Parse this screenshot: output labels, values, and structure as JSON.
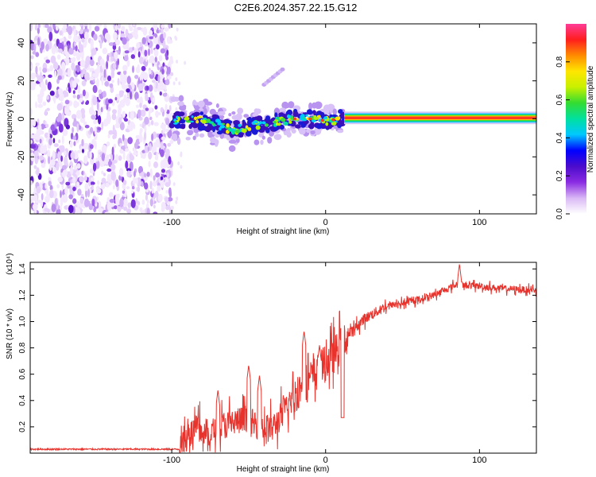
{
  "title": "C2E6.2024.357.22.15.G12",
  "chart_data": [
    {
      "type": "heatmap",
      "xlabel": "Height of straight line (km)",
      "ylabel": "Frequency (Hz)",
      "xlim": [
        -192,
        137
      ],
      "ylim": [
        -50,
        50
      ],
      "xticks": [
        -100,
        0,
        100
      ],
      "yticks": [
        -40,
        -20,
        0,
        20,
        40
      ],
      "colorbar": {
        "label": "Normalized spectral amplitude",
        "range": [
          0,
          1
        ],
        "ticks": [
          0.0,
          0.2,
          0.4,
          0.6,
          0.8
        ],
        "colors": [
          "#ffffff",
          "#d9b8f5",
          "#8a2be2",
          "#4b0ccc",
          "#0000ff",
          "#00c8ff",
          "#00e0a0",
          "#32dc32",
          "#c8f000",
          "#ffe600",
          "#ff8c00",
          "#ff1e1e",
          "#ff3c96"
        ]
      },
      "regions": {
        "noise_x": [
          -192,
          -100
        ],
        "blob_x": [
          -100,
          12
        ],
        "line_x": [
          12,
          137
        ],
        "line_frequency": 0.5,
        "line_width_hz": 3
      },
      "blob_centerline": [
        {
          "x": -98,
          "y": -1
        },
        {
          "x": -90,
          "y": 0
        },
        {
          "x": -80,
          "y": -1
        },
        {
          "x": -70,
          "y": -3
        },
        {
          "x": -60,
          "y": -6
        },
        {
          "x": -50,
          "y": -4
        },
        {
          "x": -40,
          "y": -3
        },
        {
          "x": -30,
          "y": -1
        },
        {
          "x": -20,
          "y": 0
        },
        {
          "x": -10,
          "y": 0
        },
        {
          "x": 0,
          "y": -1
        },
        {
          "x": 10,
          "y": 0
        }
      ],
      "spur": {
        "x": [
          -40,
          -28
        ],
        "y": [
          18,
          26
        ]
      }
    },
    {
      "type": "line",
      "xlabel": "Height of straight line (km)",
      "ylabel": "SNR (10 * v/v)",
      "exponent_label": "(x10⁴)",
      "color": "#e8322c",
      "xlim": [
        -192,
        137
      ],
      "ylim": [
        0,
        1.45
      ],
      "xticks": [
        -100,
        0,
        100
      ],
      "yticks": [
        0.2,
        0.4,
        0.6,
        0.8,
        1.0,
        1.2,
        1.4
      ],
      "ytick_labels": [
        "0.2",
        "0.4",
        "0.6",
        "0.8",
        "1.0",
        "1.2",
        "1.4"
      ],
      "trend": [
        {
          "x": -192,
          "y": 0.03
        },
        {
          "x": -95,
          "y": 0.03
        },
        {
          "x": -90,
          "y": 0.12
        },
        {
          "x": -85,
          "y": 0.18
        },
        {
          "x": -75,
          "y": 0.15
        },
        {
          "x": -65,
          "y": 0.22
        },
        {
          "x": -55,
          "y": 0.25
        },
        {
          "x": -45,
          "y": 0.22
        },
        {
          "x": -35,
          "y": 0.18
        },
        {
          "x": -25,
          "y": 0.35
        },
        {
          "x": -15,
          "y": 0.52
        },
        {
          "x": -5,
          "y": 0.62
        },
        {
          "x": 5,
          "y": 0.74
        },
        {
          "x": 15,
          "y": 0.9
        },
        {
          "x": 25,
          "y": 1.02
        },
        {
          "x": 40,
          "y": 1.12
        },
        {
          "x": 55,
          "y": 1.15
        },
        {
          "x": 70,
          "y": 1.2
        },
        {
          "x": 85,
          "y": 1.28
        },
        {
          "x": 100,
          "y": 1.27
        },
        {
          "x": 115,
          "y": 1.25
        },
        {
          "x": 137,
          "y": 1.24
        }
      ],
      "peaks": [
        {
          "x": -70,
          "y": 0.48
        },
        {
          "x": -50,
          "y": 0.67
        },
        {
          "x": -43,
          "y": 0.59
        },
        {
          "x": -14,
          "y": 0.93
        },
        {
          "x": -4,
          "y": 0.82
        },
        {
          "x": 11,
          "y": 0.27
        },
        {
          "x": 87,
          "y": 1.44
        }
      ]
    }
  ]
}
